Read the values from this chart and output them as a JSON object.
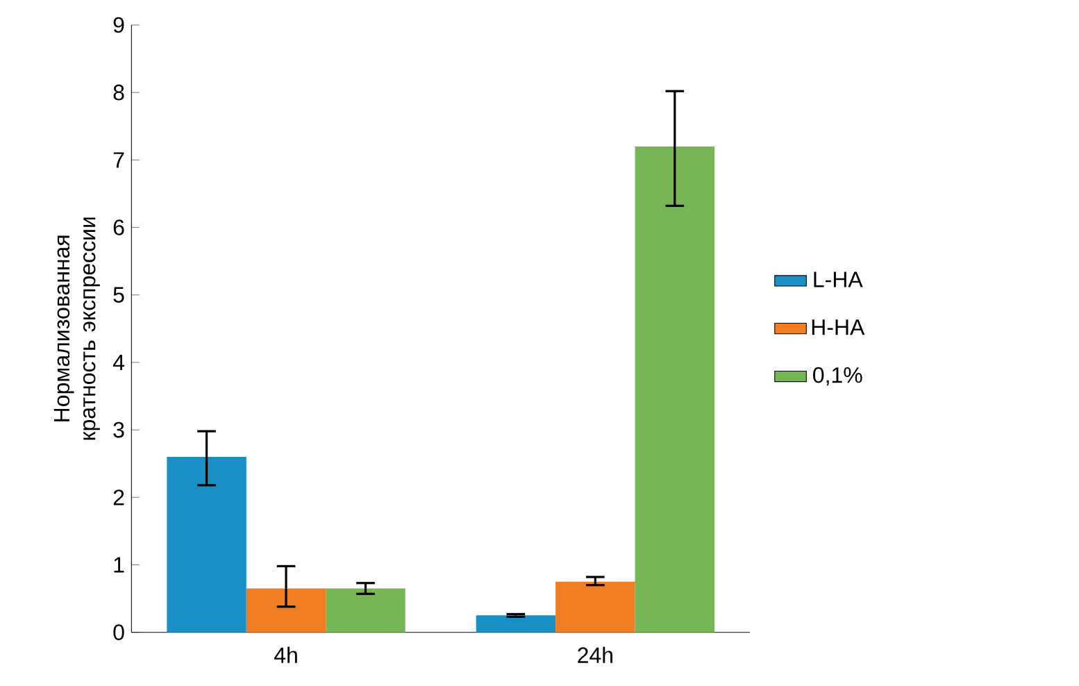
{
  "chart_data": {
    "type": "bar",
    "ylabel": "Нормализованная кратность экспрессии",
    "categories": [
      "4h",
      "24h"
    ],
    "series": [
      {
        "name": "L-HA",
        "color": "#1a8fc4",
        "values": [
          2.6,
          0.25
        ],
        "errors": [
          [
            2.18,
            2.98
          ],
          [
            0.23,
            0.27
          ]
        ]
      },
      {
        "name": "H-HA",
        "color": "#f07d22",
        "values": [
          0.65,
          0.75
        ],
        "errors": [
          [
            0.38,
            0.98
          ],
          [
            0.7,
            0.82
          ]
        ]
      },
      {
        "name": "0,1%",
        "color": "#77b654",
        "values": [
          0.65,
          7.2
        ],
        "errors": [
          [
            0.57,
            0.73
          ],
          [
            6.32,
            8.02
          ]
        ]
      }
    ],
    "ylim": [
      0,
      9
    ],
    "yticks": [
      0,
      1,
      2,
      3,
      4,
      5,
      6,
      7,
      8,
      9
    ],
    "legend": "right"
  }
}
